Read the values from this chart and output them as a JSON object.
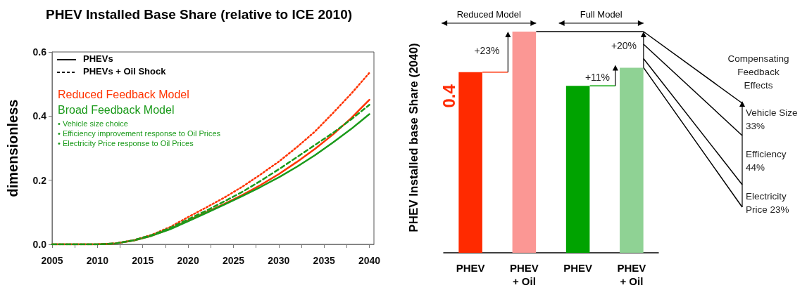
{
  "chart_data": [
    {
      "type": "line",
      "title": "PHEV Installed Base Share (relative to ICE 2010)",
      "ylabel": "dimensionless",
      "x": [
        2005,
        2008,
        2010,
        2012,
        2014,
        2016,
        2018,
        2020,
        2022,
        2024,
        2026,
        2028,
        2030,
        2032,
        2034,
        2036,
        2038,
        2040
      ],
      "series": [
        {
          "color": "#ff3300",
          "line_style": "solid",
          "values": [
            0,
            0,
            0,
            0.003,
            0.012,
            0.027,
            0.048,
            0.074,
            0.1,
            0.126,
            0.154,
            0.185,
            0.219,
            0.257,
            0.298,
            0.343,
            0.394,
            0.451
          ]
        },
        {
          "color": "#1a9a1a",
          "line_style": "solid",
          "values": [
            0,
            0,
            0,
            0.003,
            0.012,
            0.027,
            0.047,
            0.072,
            0.098,
            0.124,
            0.151,
            0.179,
            0.209,
            0.242,
            0.278,
            0.318,
            0.36,
            0.406
          ]
        },
        {
          "color": "#ff3300",
          "line_style": "dotted",
          "values": [
            0,
            0,
            0,
            0.003,
            0.013,
            0.03,
            0.054,
            0.085,
            0.115,
            0.146,
            0.18,
            0.218,
            0.258,
            0.303,
            0.352,
            0.41,
            0.47,
            0.535
          ]
        },
        {
          "color": "#1a9a1a",
          "line_style": "dashed",
          "values": [
            0,
            0,
            0,
            0.003,
            0.013,
            0.029,
            0.051,
            0.078,
            0.105,
            0.134,
            0.164,
            0.198,
            0.234,
            0.272,
            0.31,
            0.348,
            0.39,
            0.435
          ]
        }
      ],
      "xlim": [
        2005,
        2040.5
      ],
      "xticks": [
        2005,
        {
          "value": 2007.5,
          "label": null
        },
        2010,
        {
          "value": 2012.5,
          "label": null
        },
        2015,
        {
          "value": 2017.5,
          "label": null
        },
        2020,
        {
          "value": 2022.5,
          "label": null
        },
        2025,
        {
          "value": 2027.5,
          "label": null
        },
        2030,
        {
          "value": 2032.5,
          "label": null
        },
        2035,
        {
          "value": 2037.5,
          "label": null
        },
        2040
      ],
      "ylim": [
        0,
        0.6
      ],
      "yticks": [
        {
          "value": 0,
          "label": "0.0"
        },
        0.2,
        0.4,
        0.6
      ],
      "annotations": [
        "PHEVs",
        "PHEVs + Oil Shock",
        "Reduced Feedback Model",
        "Broad Feedback Model",
        "• Vehicle size choice",
        "• Efficiency improvement response to Oil Prices",
        "• Electricity Price response to Oil Prices"
      ],
      "marker": "none",
      "grid": false
    },
    {
      "type": "bar",
      "ylabel": "PHEV Installed base Share (2040)",
      "categories": [
        "PHEV",
        "PHEV\n+ Oil",
        "PHEV",
        "PHEV\n+ Oil"
      ],
      "values": [
        0.4,
        0.49,
        0.37,
        0.41
      ],
      "colors": [
        "#ff2a00",
        "#fb9794",
        "#00a300",
        "#8fd294"
      ],
      "value_labels": [
        "0.4",
        null,
        null,
        null
      ],
      "annotations": [
        "Reduced Model",
        "Full Model",
        "+23%",
        "+11%",
        "+20%",
        "Compensating Feedback Effects",
        "Vehicle Size 33%",
        "Efficiency 44%",
        "Electricity Price 23%"
      ],
      "grid": false
    }
  ]
}
